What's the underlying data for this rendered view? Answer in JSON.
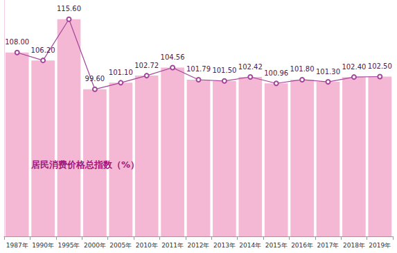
{
  "chart_data": {
    "type": "bar",
    "title": "居民消费价格总指数（%）",
    "categories": [
      "1987年",
      "1990年",
      "1995年",
      "2000年",
      "2005年",
      "2010年",
      "2011年",
      "2012年",
      "2013年",
      "2014年",
      "2015年",
      "2016年",
      "2017年",
      "2018年",
      "2019年"
    ],
    "series": [
      {
        "type": "bar",
        "color": "#f4b8d4",
        "values": [
          108,
          106.2,
          115.6,
          99.6,
          101.1,
          102.72,
          104.56,
          101.79,
          101.5,
          102.42,
          100.96,
          101.8,
          101.3,
          102.4,
          102.5
        ]
      },
      {
        "type": "line",
        "color": "#a4449a",
        "marker": "circle",
        "line_style": "solid",
        "values": [
          108,
          106.2,
          115.6,
          99.6,
          101.1,
          102.72,
          104.56,
          101.79,
          101.5,
          102.42,
          100.96,
          101.8,
          101.3,
          102.4,
          102.5
        ],
        "value_labels": [
          "108.00",
          "106.20",
          "115.60",
          "99.60",
          "101.10",
          "102.72",
          "104.56",
          "101.79",
          "101.50",
          "102.42",
          "100.96",
          "101.80",
          "101.30",
          "102.40",
          "102.50"
        ]
      }
    ],
    "ylim": [
      66,
      120
    ],
    "grid": false,
    "data_labels": true,
    "tick_labels": "x"
  }
}
